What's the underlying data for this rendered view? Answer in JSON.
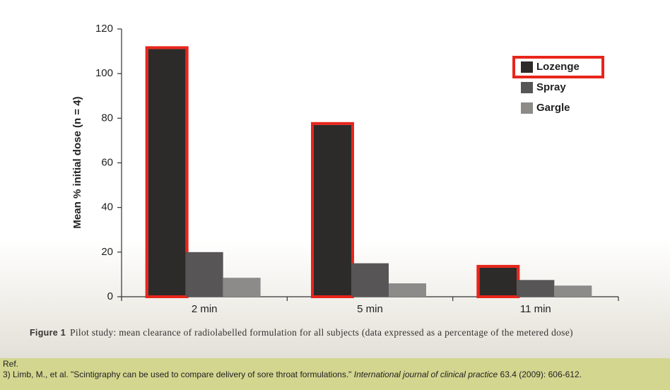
{
  "chart_data": {
    "type": "bar",
    "categories": [
      "2 min",
      "5 min",
      "11 min"
    ],
    "series": [
      {
        "name": "Lozenge",
        "color": "#2d2a2a",
        "values": [
          111,
          77,
          13
        ],
        "highlighted": true
      },
      {
        "name": "Spray",
        "color": "#575555",
        "values": [
          20,
          15,
          7.5
        ]
      },
      {
        "name": "Gargle",
        "color": "#8c8b8a",
        "values": [
          8.5,
          6,
          5
        ]
      }
    ],
    "y_label": "Mean % initial dose (n = 4)",
    "ylim": [
      0,
      120
    ],
    "yticks": [
      0,
      20,
      40,
      60,
      80,
      100,
      120
    ],
    "legend": "upper-right",
    "highlight_color": "#e8251b",
    "grid": false
  },
  "caption": {
    "label": "Figure 1",
    "text": "Pilot study: mean clearance of radiolabelled formulation for all subjects (data expressed as a percentage of the metered dose)"
  },
  "reference": {
    "heading": "Ref.",
    "citation": "3) Limb, M., et al. \"Scintigraphy can be used to compare delivery of sore throat formulations.\" ",
    "journal": "International journal of clinical practice",
    "details": " 63.4 (2009): 606-612."
  }
}
